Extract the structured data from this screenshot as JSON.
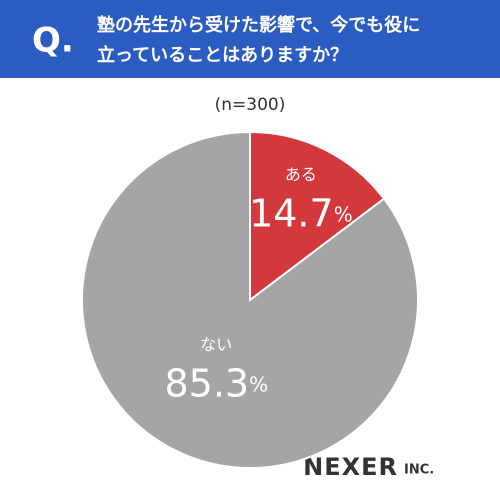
{
  "chart_data": {
    "type": "pie",
    "badge": "Q.",
    "title": [
      "塾の先生から受けた影響で、今でも役に",
      "立っていることはありますか？"
    ],
    "subtitle": "(n=300)",
    "categories": [
      "ある",
      "ない"
    ],
    "values": [
      14.7,
      85.3
    ],
    "value_labels": [
      "14.7%",
      "85.3%"
    ],
    "colors": [
      "#d2383c",
      "#a5a5a5"
    ],
    "brand": "NEXER",
    "brand_suffix": "INC."
  }
}
